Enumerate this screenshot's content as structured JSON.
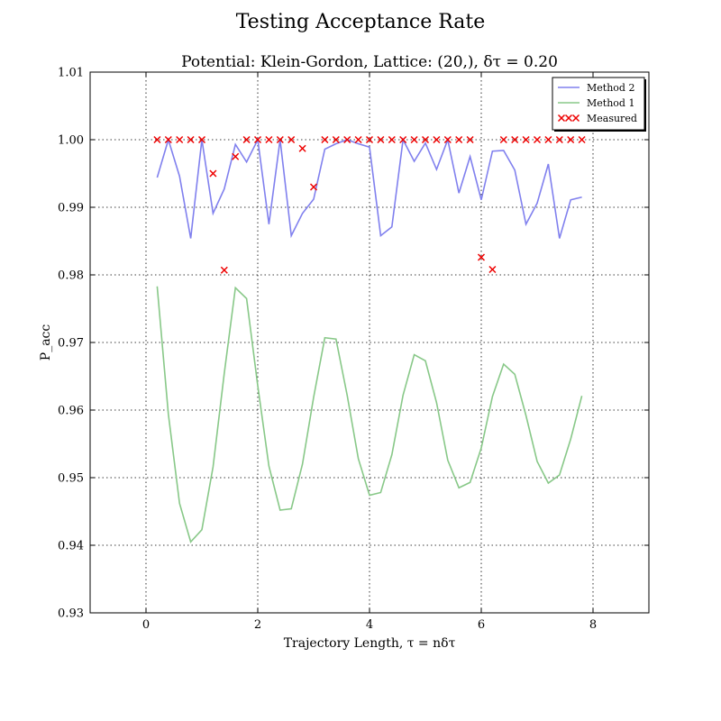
{
  "chart_data": {
    "type": "line",
    "title": "Testing Acceptance Rate",
    "subtitle": "Potential: Klein-Gordon, Lattice: (20,), δτ = 0.20",
    "xlabel": "Trajectory Length, τ = nδτ",
    "ylabel": "P_acc",
    "xlim": [
      -1,
      9
    ],
    "ylim": [
      0.93,
      1.01
    ],
    "xticks": [
      0,
      2,
      4,
      6,
      8
    ],
    "xtick_labels": [
      "0",
      "2",
      "4",
      "6",
      "8"
    ],
    "yticks": [
      0.93,
      0.94,
      0.95,
      0.96,
      0.97,
      0.98,
      0.99,
      1.0,
      1.01
    ],
    "ytick_labels": [
      "0.93",
      "0.94",
      "0.95",
      "0.96",
      "0.97",
      "0.98",
      "0.99",
      "1.00",
      "1.01"
    ],
    "grid": true,
    "legend_position": "top-right",
    "x": [
      0.2,
      0.4,
      0.6,
      0.8,
      1.0,
      1.2,
      1.4,
      1.6,
      1.8,
      2.0,
      2.2,
      2.4,
      2.6,
      2.8,
      3.0,
      3.2,
      3.4,
      3.6,
      3.8,
      4.0,
      4.2,
      4.4,
      4.6,
      4.8,
      5.0,
      5.2,
      5.4,
      5.6,
      5.8,
      6.0,
      6.2,
      6.4,
      6.6,
      6.8,
      7.0,
      7.2,
      7.4,
      7.6,
      7.8
    ],
    "series": [
      {
        "name": "Method 2",
        "kind": "line",
        "color": "#8080ee",
        "values": [
          0.9944,
          1.0,
          0.9946,
          0.9854,
          1.0,
          0.9891,
          0.9927,
          0.9993,
          0.9967,
          1.0,
          0.9875,
          1.0,
          0.9858,
          0.9891,
          0.9912,
          0.9986,
          0.9994,
          1.0,
          0.9994,
          0.9989,
          0.9858,
          0.9871,
          1.0,
          0.9968,
          0.9995,
          0.9956,
          1.0,
          0.9921,
          0.9975,
          0.9911,
          0.9983,
          0.9984,
          0.9955,
          0.9875,
          0.9906,
          0.9964,
          0.9854,
          0.9911,
          0.9915
        ]
      },
      {
        "name": "Method 1",
        "kind": "line",
        "color": "#88c888",
        "values": [
          0.9783,
          0.9594,
          0.9462,
          0.9405,
          0.9423,
          0.9516,
          0.9654,
          0.9781,
          0.9765,
          0.9636,
          0.9517,
          0.9452,
          0.9454,
          0.952,
          0.9619,
          0.9707,
          0.9705,
          0.9622,
          0.9528,
          0.9474,
          0.9478,
          0.9534,
          0.9622,
          0.9682,
          0.9673,
          0.9611,
          0.9526,
          0.9485,
          0.9493,
          0.9544,
          0.962,
          0.9668,
          0.9653,
          0.9592,
          0.9524,
          0.9492,
          0.9504,
          0.9557,
          0.9621
        ]
      },
      {
        "name": "Measured",
        "kind": "scatter",
        "marker": "x",
        "color": "#ee0000",
        "values": [
          1.0,
          1.0,
          1.0,
          1.0,
          1.0,
          0.995,
          0.9807,
          0.9975,
          1.0,
          1.0,
          1.0,
          1.0,
          1.0,
          0.9987,
          0.993,
          1.0,
          1.0,
          1.0,
          1.0,
          1.0,
          1.0,
          1.0,
          1.0,
          1.0,
          1.0,
          1.0,
          1.0,
          1.0,
          1.0,
          0.9826,
          0.9808,
          1.0,
          1.0,
          1.0,
          1.0,
          1.0,
          1.0,
          1.0,
          1.0
        ]
      }
    ]
  }
}
